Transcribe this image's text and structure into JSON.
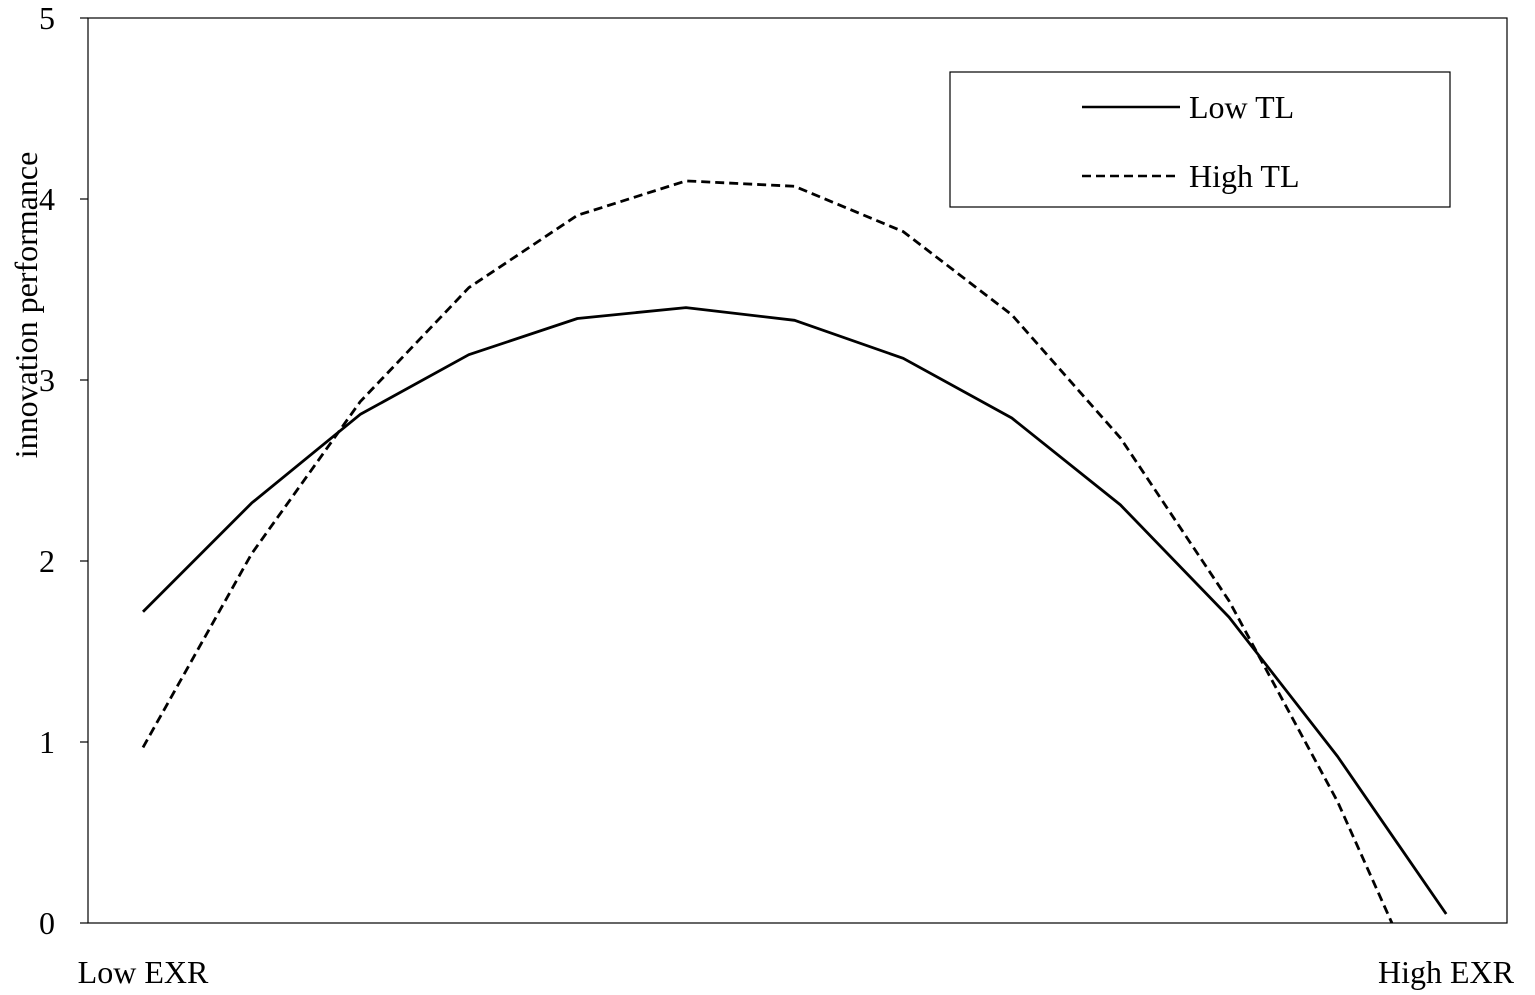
{
  "chart_data": {
    "type": "line",
    "ylabel": "innovation performance",
    "ylim": [
      0,
      5
    ],
    "y_ticks": [
      "0",
      "1",
      "2",
      "3",
      "4",
      "5"
    ],
    "x_start_label": "Low EXR",
    "x_end_label": "High EXR",
    "xlim": [
      0,
      12.5
    ],
    "legend_position": "top-right",
    "grid": false,
    "series": [
      {
        "name": "Low TL",
        "style": "solid",
        "color": "#000000",
        "x": [
          0,
          1,
          2,
          3,
          4,
          5,
          6,
          7,
          8,
          9,
          10,
          11,
          12
        ],
        "y": [
          1.72,
          2.32,
          2.81,
          3.14,
          3.34,
          3.4,
          3.33,
          3.12,
          2.79,
          2.31,
          1.69,
          0.92,
          0.05
        ]
      },
      {
        "name": "High TL",
        "style": "dashed",
        "color": "#000000",
        "x": [
          0,
          1,
          2,
          3,
          4,
          5,
          6,
          7,
          8,
          9,
          10,
          11,
          11.5
        ],
        "y": [
          0.97,
          2.04,
          2.88,
          3.51,
          3.91,
          4.1,
          4.07,
          3.82,
          3.36,
          2.68,
          1.78,
          0.67,
          0.0
        ]
      }
    ]
  }
}
